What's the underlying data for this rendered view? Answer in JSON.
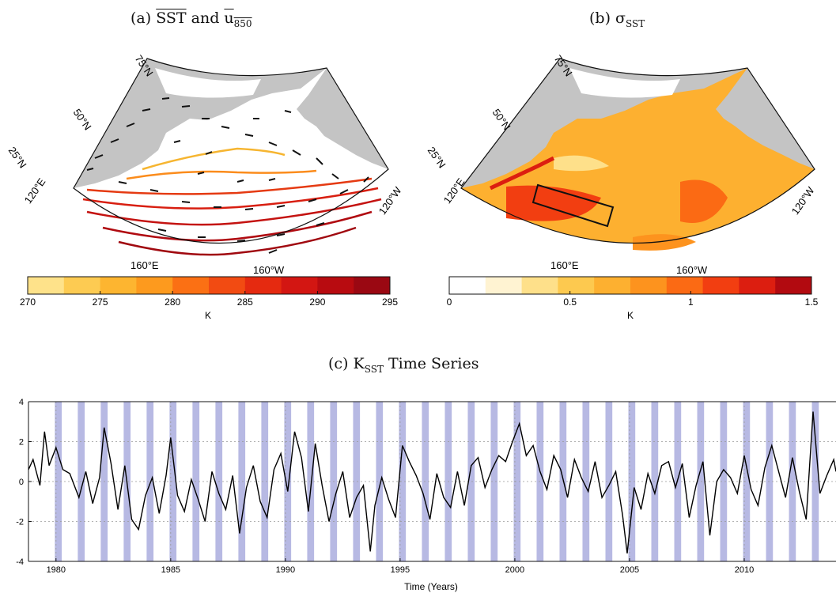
{
  "panel_a": {
    "title_prefix": "(a)",
    "title_sst": "SST",
    "title_and": "and",
    "title_u": "u",
    "title_u_sub": "850",
    "lat_labels": [
      "75°N",
      "50°N",
      "25°N"
    ],
    "lon_labels": [
      "120°E",
      "160°E",
      "160°W",
      "120°W"
    ],
    "colorbar": {
      "ticks": [
        "270",
        "275",
        "280",
        "285",
        "290",
        "295"
      ],
      "unit": "K",
      "colors": [
        "#fee28a",
        "#fdcb52",
        "#fdb530",
        "#fd9a1e",
        "#fb7014",
        "#f24b12",
        "#e52a10",
        "#d31612",
        "#b80b10",
        "#9a0812"
      ]
    }
  },
  "panel_b": {
    "title_prefix": "(b)",
    "title_sigma": "σ",
    "title_sub": "SST",
    "lat_labels": [
      "75°N",
      "50°N",
      "25°N"
    ],
    "lon_labels": [
      "120°E",
      "160°E",
      "160°W",
      "120°W"
    ],
    "colorbar": {
      "ticks": [
        "0",
        "0.5",
        "1",
        "1.5"
      ],
      "unit": "K",
      "colors": [
        "#ffffff",
        "#fff3d2",
        "#fee08a",
        "#fdc94f",
        "#fdb030",
        "#fd931e",
        "#fb6a14",
        "#f23e11",
        "#dc1e10",
        "#b20a10"
      ]
    }
  },
  "chart_data": {
    "type": "line",
    "title_prefix": "(c)",
    "title_k": "K",
    "title_k_sub": "SST",
    "title_rest": "Time Series",
    "xlabel": "Time (Years)",
    "ylabel": "",
    "xlim": [
      1978.8,
      2014
    ],
    "ylim": [
      -4,
      4
    ],
    "x_ticks": [
      1980,
      1985,
      1990,
      1995,
      2000,
      2005,
      2010
    ],
    "y_ticks": [
      -4,
      -2,
      0,
      2,
      4
    ],
    "grid": true,
    "shaded_band_centers": [
      1980.1,
      1981.1,
      1982.1,
      1983.1,
      1984.1,
      1985.1,
      1986.1,
      1987.1,
      1988.1,
      1989.1,
      1990.1,
      1991.1,
      1992.1,
      1993.1,
      1994.1,
      1995.1,
      1996.1,
      1997.1,
      1998.1,
      1999.1,
      2000.1,
      2001.1,
      2002.1,
      2003.1,
      2004.1,
      2005.1,
      2006.1,
      2007.1,
      2008.1,
      2009.1,
      2010.1,
      2011.1,
      2012.1,
      2013.1
    ],
    "shaded_band_width_years": 0.3,
    "series": [
      {
        "color": "#000000",
        "x": [
          1978.8,
          1979.0,
          1979.3,
          1979.5,
          1979.7,
          1980.0,
          1980.3,
          1980.6,
          1981.0,
          1981.3,
          1981.6,
          1981.9,
          1982.1,
          1982.4,
          1982.7,
          1983.0,
          1983.3,
          1983.6,
          1983.9,
          1984.2,
          1984.5,
          1984.8,
          1985.0,
          1985.3,
          1985.6,
          1985.9,
          1986.2,
          1986.5,
          1986.8,
          1987.1,
          1987.4,
          1987.7,
          1988.0,
          1988.3,
          1988.6,
          1988.9,
          1989.2,
          1989.5,
          1989.8,
          1990.1,
          1990.4,
          1990.7,
          1991.0,
          1991.3,
          1991.6,
          1991.9,
          1992.2,
          1992.5,
          1992.8,
          1993.1,
          1993.4,
          1993.7,
          1993.9,
          1994.2,
          1994.5,
          1994.8,
          1995.1,
          1995.4,
          1995.7,
          1996.0,
          1996.3,
          1996.6,
          1996.9,
          1997.2,
          1997.5,
          1997.8,
          1998.1,
          1998.4,
          1998.7,
          1999.0,
          1999.3,
          1999.6,
          1999.9,
          2000.2,
          2000.5,
          2000.8,
          2001.1,
          2001.4,
          2001.7,
          2002.0,
          2002.3,
          2002.6,
          2002.9,
          2003.2,
          2003.5,
          2003.8,
          2004.1,
          2004.4,
          2004.7,
          2004.9,
          2005.2,
          2005.5,
          2005.8,
          2006.1,
          2006.4,
          2006.7,
          2007.0,
          2007.3,
          2007.6,
          2007.9,
          2008.2,
          2008.5,
          2008.8,
          2009.1,
          2009.4,
          2009.7,
          2010.0,
          2010.3,
          2010.6,
          2010.9,
          2011.2,
          2011.5,
          2011.8,
          2012.1,
          2012.4,
          2012.7,
          2013.0,
          2013.3,
          2013.6,
          2013.9,
          2014.0
        ],
        "y": [
          0.6,
          1.1,
          -0.2,
          2.5,
          0.8,
          1.7,
          0.6,
          0.4,
          -0.8,
          0.5,
          -1.1,
          0.2,
          2.7,
          0.9,
          -1.4,
          0.8,
          -1.9,
          -2.4,
          -0.7,
          0.2,
          -1.6,
          0.3,
          2.2,
          -0.7,
          -1.5,
          0.1,
          -0.9,
          -2.0,
          0.5,
          -0.6,
          -1.4,
          0.3,
          -2.6,
          -0.3,
          0.8,
          -1.0,
          -1.8,
          0.6,
          1.4,
          -0.5,
          2.5,
          1.2,
          -1.5,
          1.9,
          -0.2,
          -2.0,
          -0.6,
          0.5,
          -1.8,
          -0.8,
          -0.2,
          -3.5,
          -1.2,
          0.2,
          -0.9,
          -1.8,
          1.8,
          1.0,
          0.3,
          -0.6,
          -1.9,
          0.4,
          -0.8,
          -1.3,
          0.5,
          -1.2,
          0.8,
          1.2,
          -0.3,
          0.6,
          1.3,
          1.0,
          2.0,
          2.9,
          1.3,
          1.8,
          0.5,
          -0.4,
          1.3,
          0.6,
          -0.8,
          1.1,
          0.2,
          -0.5,
          1.0,
          -0.8,
          -0.2,
          0.5,
          -1.7,
          -3.6,
          -0.3,
          -1.4,
          0.4,
          -0.6,
          0.8,
          1.0,
          -0.3,
          0.9,
          -1.8,
          -0.2,
          1.0,
          -2.7,
          0.0,
          0.6,
          0.2,
          -0.6,
          1.3,
          -0.4,
          -1.2,
          0.7,
          1.8,
          0.5,
          -0.8,
          1.2,
          -0.5,
          -1.9,
          3.5,
          -0.6,
          0.3,
          1.1,
          0.5
        ]
      }
    ]
  }
}
